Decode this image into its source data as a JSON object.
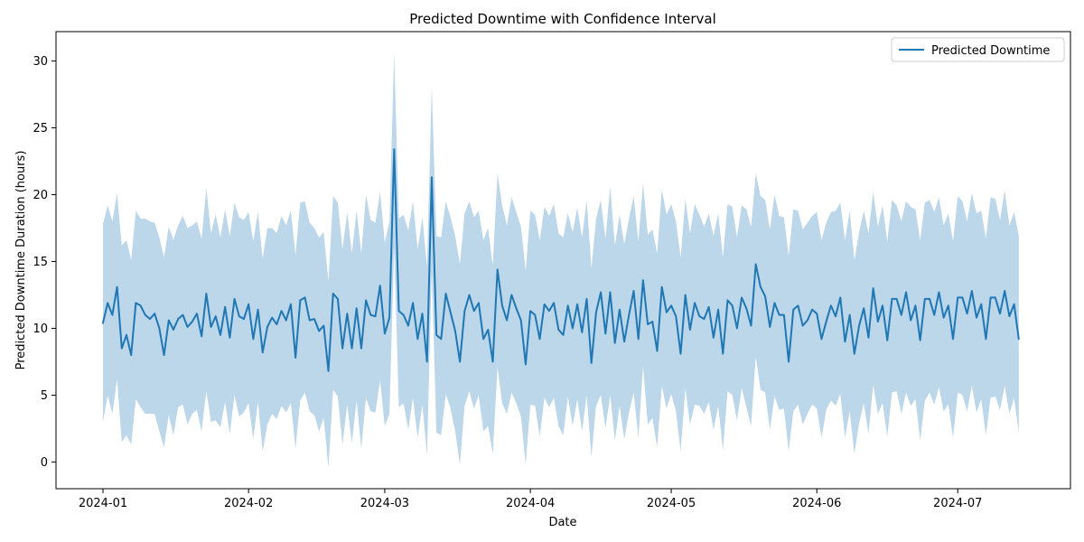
{
  "chart_data": {
    "type": "line",
    "title": "Predicted Downtime with Confidence Interval",
    "xlabel": "Date",
    "ylabel": "Predicted Downtime Duration (hours)",
    "xlim": [
      "2023-12-22",
      "2024-07-25"
    ],
    "ylim": [
      -2,
      32.2
    ],
    "x_ticks": [
      {
        "date": "2024-01-01",
        "label": "2024-01"
      },
      {
        "date": "2024-02-01",
        "label": "2024-02"
      },
      {
        "date": "2024-03-01",
        "label": "2024-03"
      },
      {
        "date": "2024-04-01",
        "label": "2024-04"
      },
      {
        "date": "2024-05-01",
        "label": "2024-05"
      },
      {
        "date": "2024-06-01",
        "label": "2024-06"
      },
      {
        "date": "2024-07-01",
        "label": "2024-07"
      }
    ],
    "y_ticks": [
      0,
      5,
      10,
      15,
      20,
      25,
      30
    ],
    "grid": false,
    "legend": {
      "position": "top-right",
      "entries": [
        "Predicted Downtime"
      ]
    },
    "colors": {
      "line": "#1f77b4",
      "band": "#bcd6ea"
    },
    "x": [
      "2024-01-01",
      "2024-01-02",
      "2024-01-03",
      "2024-01-04",
      "2024-01-05",
      "2024-01-06",
      "2024-01-07",
      "2024-01-08",
      "2024-01-09",
      "2024-01-10",
      "2024-01-11",
      "2024-01-12",
      "2024-01-13",
      "2024-01-14",
      "2024-01-15",
      "2024-01-16",
      "2024-01-17",
      "2024-01-18",
      "2024-01-19",
      "2024-01-20",
      "2024-01-21",
      "2024-01-22",
      "2024-01-23",
      "2024-01-24",
      "2024-01-25",
      "2024-01-26",
      "2024-01-27",
      "2024-01-28",
      "2024-01-29",
      "2024-01-30",
      "2024-01-31",
      "2024-02-01",
      "2024-02-02",
      "2024-02-03",
      "2024-02-04",
      "2024-02-05",
      "2024-02-06",
      "2024-02-07",
      "2024-02-08",
      "2024-02-09",
      "2024-02-10",
      "2024-02-11",
      "2024-02-12",
      "2024-02-13",
      "2024-02-14",
      "2024-02-15",
      "2024-02-16",
      "2024-02-17",
      "2024-02-18",
      "2024-02-19",
      "2024-02-20",
      "2024-02-21",
      "2024-02-22",
      "2024-02-23",
      "2024-02-24",
      "2024-02-25",
      "2024-02-26",
      "2024-02-27",
      "2024-02-28",
      "2024-02-29",
      "2024-03-01",
      "2024-03-02",
      "2024-03-03",
      "2024-03-04",
      "2024-03-05",
      "2024-03-06",
      "2024-03-07",
      "2024-03-08",
      "2024-03-09",
      "2024-03-10",
      "2024-03-11",
      "2024-03-12",
      "2024-03-13",
      "2024-03-14",
      "2024-03-15",
      "2024-03-16",
      "2024-03-17",
      "2024-03-18",
      "2024-03-19",
      "2024-03-20",
      "2024-03-21",
      "2024-03-22",
      "2024-03-23",
      "2024-03-24",
      "2024-03-25",
      "2024-03-26",
      "2024-03-27",
      "2024-03-28",
      "2024-03-29",
      "2024-03-30",
      "2024-03-31",
      "2024-04-01",
      "2024-04-02",
      "2024-04-03",
      "2024-04-04",
      "2024-04-05",
      "2024-04-06",
      "2024-04-07",
      "2024-04-08",
      "2024-04-09",
      "2024-04-10",
      "2024-04-11",
      "2024-04-12",
      "2024-04-13",
      "2024-04-14",
      "2024-04-15",
      "2024-04-16",
      "2024-04-17",
      "2024-04-18",
      "2024-04-19",
      "2024-04-20",
      "2024-04-21",
      "2024-04-22",
      "2024-04-23",
      "2024-04-24",
      "2024-04-25",
      "2024-04-26",
      "2024-04-27",
      "2024-04-28",
      "2024-04-29",
      "2024-04-30",
      "2024-05-01",
      "2024-05-02",
      "2024-05-03",
      "2024-05-04",
      "2024-05-05",
      "2024-05-06",
      "2024-05-07",
      "2024-05-08",
      "2024-05-09",
      "2024-05-10",
      "2024-05-11",
      "2024-05-12",
      "2024-05-13",
      "2024-05-14",
      "2024-05-15",
      "2024-05-16",
      "2024-05-17",
      "2024-05-18",
      "2024-05-19",
      "2024-05-20",
      "2024-05-21",
      "2024-05-22",
      "2024-05-23",
      "2024-05-24",
      "2024-05-25",
      "2024-05-26",
      "2024-05-27",
      "2024-05-28",
      "2024-05-29",
      "2024-05-30",
      "2024-05-31",
      "2024-06-01",
      "2024-06-02",
      "2024-06-03",
      "2024-06-04",
      "2024-06-05",
      "2024-06-06",
      "2024-06-07",
      "2024-06-08",
      "2024-06-09",
      "2024-06-10",
      "2024-06-11",
      "2024-06-12",
      "2024-06-13",
      "2024-06-14",
      "2024-06-15",
      "2024-06-16",
      "2024-06-17",
      "2024-06-18",
      "2024-06-19",
      "2024-06-20",
      "2024-06-21",
      "2024-06-22",
      "2024-06-23",
      "2024-06-24",
      "2024-06-25",
      "2024-06-26",
      "2024-06-27",
      "2024-06-28",
      "2024-06-29",
      "2024-06-30",
      "2024-07-01",
      "2024-07-02",
      "2024-07-03",
      "2024-07-04",
      "2024-07-05",
      "2024-07-06",
      "2024-07-07",
      "2024-07-08",
      "2024-07-09",
      "2024-07-10",
      "2024-07-11",
      "2024-07-12",
      "2024-07-13",
      "2024-07-14"
    ],
    "series": [
      {
        "name": "Predicted Downtime",
        "values": [
          10.4,
          11.9,
          11.0,
          13.1,
          8.5,
          9.5,
          8.0,
          11.9,
          11.7,
          11.0,
          10.7,
          11.1,
          10.0,
          8.0,
          10.6,
          9.9,
          10.7,
          11.0,
          10.1,
          10.5,
          11.1,
          9.4,
          12.6,
          10.1,
          10.9,
          9.5,
          11.6,
          9.3,
          12.2,
          10.9,
          10.7,
          11.8,
          9.2,
          11.4,
          8.2,
          10.1,
          10.8,
          10.3,
          11.3,
          10.6,
          11.8,
          7.8,
          12.1,
          12.3,
          10.6,
          10.7,
          9.8,
          10.2,
          6.8,
          12.6,
          12.2,
          8.5,
          11.1,
          8.5,
          11.5,
          8.5,
          12.1,
          11.0,
          10.9,
          13.2,
          9.6,
          10.8,
          23.4,
          11.3,
          11.0,
          10.2,
          11.9,
          9.2,
          11.1,
          7.5,
          21.3,
          9.5,
          9.2,
          12.6,
          11.2,
          9.8,
          7.5,
          11.3,
          12.5,
          11.3,
          11.9,
          9.2,
          9.9,
          7.5,
          14.4,
          11.7,
          10.6,
          12.5,
          11.5,
          10.6,
          7.3,
          11.3,
          11.0,
          9.2,
          11.8,
          11.3,
          11.9,
          9.9,
          9.5,
          11.7,
          10.0,
          11.8,
          9.7,
          12.2,
          7.4,
          11.2,
          12.7,
          9.6,
          12.7,
          8.9,
          11.4,
          9.0,
          11.0,
          12.8,
          9.2,
          13.6,
          10.3,
          10.5,
          8.3,
          13.1,
          11.2,
          11.7,
          10.9,
          8.1,
          12.5,
          9.9,
          11.9,
          10.9,
          10.7,
          11.6,
          9.3,
          11.4,
          8.1,
          12.1,
          11.7,
          10.0,
          12.3,
          11.5,
          10.2,
          14.8,
          13.1,
          12.4,
          10.1,
          11.9,
          11.0,
          11.0,
          7.5,
          11.4,
          11.7,
          10.2,
          10.6,
          11.4,
          11.1,
          9.2,
          10.5,
          11.7,
          10.9,
          12.3,
          9.0,
          11.0,
          8.1,
          10.2,
          11.5,
          9.3,
          13.0,
          10.5,
          11.7,
          9.1,
          12.2,
          12.2,
          11.0,
          12.7,
          10.6,
          11.7,
          9.1,
          12.2,
          12.2,
          11.0,
          12.7,
          10.8,
          11.7,
          9.2,
          12.3,
          12.3,
          11.1,
          12.8,
          10.8,
          11.8,
          9.2,
          12.3,
          12.3,
          11.1,
          12.8,
          10.9,
          11.8,
          9.2
        ]
      }
    ],
    "ci_upper": [
      17.8,
      19.2,
      18.0,
      20.1,
      16.2,
      16.6,
      15.1,
      18.8,
      18.2,
      18.2,
      18.0,
      17.9,
      16.8,
      15.3,
      17.6,
      16.6,
      17.7,
      18.4,
      17.5,
      17.7,
      18.0,
      16.7,
      20.5,
      17.1,
      18.5,
      16.8,
      18.9,
      16.9,
      19.4,
      18.3,
      18.1,
      18.7,
      16.5,
      18.7,
      15.2,
      17.5,
      17.5,
      17.1,
      18.4,
      17.7,
      18.8,
      15.5,
      19.4,
      19.5,
      17.9,
      17.5,
      16.8,
      17.2,
      13.5,
      19.9,
      19.4,
      15.9,
      18.7,
      15.6,
      18.8,
      15.6,
      20.0,
      18.1,
      17.9,
      20.2,
      16.4,
      18.0,
      30.6,
      18.2,
      18.5,
      17.3,
      19.5,
      15.9,
      18.3,
      14.6,
      28.1,
      16.9,
      16.8,
      19.5,
      18.3,
      16.9,
      14.8,
      18.6,
      19.5,
      18.3,
      18.8,
      16.6,
      17.5,
      14.7,
      21.6,
      19.2,
      17.7,
      19.8,
      18.7,
      17.6,
      14.3,
      18.8,
      18.5,
      16.6,
      19.1,
      18.4,
      19.3,
      17.1,
      16.8,
      18.6,
      17.2,
      19.0,
      16.8,
      19.6,
      14.5,
      18.2,
      19.6,
      16.7,
      20.6,
      16.2,
      18.5,
      16.3,
      18.2,
      19.9,
      16.5,
      20.9,
      17.0,
      17.4,
      15.6,
      20.4,
      18.5,
      19.3,
      18.0,
      15.3,
      19.7,
      17.1,
      19.3,
      18.5,
      17.6,
      18.6,
      16.9,
      18.6,
      15.3,
      19.3,
      19.1,
      16.8,
      19.2,
      18.9,
      17.6,
      21.6,
      19.9,
      19.6,
      17.4,
      20.0,
      18.4,
      18.3,
      15.4,
      18.9,
      18.8,
      17.4,
      17.9,
      18.4,
      18.7,
      16.6,
      17.9,
      18.7,
      18.8,
      19.4,
      16.6,
      18.8,
      15.1,
      17.2,
      18.8,
      17.1,
      20.2,
      17.6,
      19.2,
      16.5,
      19.6,
      19.2,
      18.0,
      19.5,
      19.1,
      18.9,
      16.6,
      19.4,
      19.6,
      18.7,
      19.8,
      17.7,
      18.6,
      16.5,
      19.9,
      19.5,
      18.0,
      20.1,
      18.6,
      18.8,
      16.7,
      19.8,
      19.7,
      18.1,
      20.3,
      17.7,
      18.7,
      16.9
    ],
    "ci_lower": [
      3.0,
      5.0,
      3.6,
      6.2,
      1.5,
      2.0,
      1.3,
      4.7,
      4.1,
      3.6,
      3.6,
      3.6,
      2.3,
      1.1,
      3.5,
      2.0,
      4.1,
      4.3,
      2.8,
      3.6,
      3.9,
      2.3,
      5.3,
      3.0,
      3.1,
      2.6,
      4.5,
      2.1,
      5.0,
      3.4,
      3.7,
      4.4,
      1.7,
      4.5,
      0.8,
      2.8,
      3.6,
      3.2,
      4.2,
      3.7,
      4.4,
      1.0,
      4.6,
      5.2,
      3.8,
      3.5,
      2.3,
      3.3,
      -0.4,
      5.4,
      4.9,
      1.3,
      4.3,
      1.4,
      4.6,
      1.0,
      4.8,
      3.8,
      3.7,
      6.1,
      2.7,
      3.6,
      16.1,
      4.1,
      4.4,
      2.4,
      4.8,
      1.8,
      4.3,
      0.5,
      14.3,
      2.2,
      2.0,
      5.1,
      4.0,
      2.3,
      -0.2,
      4.2,
      5.3,
      4.0,
      5.0,
      2.3,
      2.7,
      0.6,
      7.1,
      4.4,
      3.6,
      5.2,
      4.4,
      3.4,
      -0.2,
      4.3,
      4.2,
      1.9,
      4.8,
      4.1,
      4.8,
      2.7,
      2.0,
      4.9,
      2.7,
      4.7,
      2.3,
      5.0,
      0.4,
      4.2,
      5.0,
      2.5,
      5.0,
      1.6,
      4.2,
      1.7,
      3.7,
      5.2,
      1.8,
      7.2,
      2.8,
      3.3,
      1.1,
      5.7,
      4.0,
      5.1,
      3.8,
      0.8,
      5.5,
      2.8,
      4.3,
      4.2,
      3.6,
      4.5,
      2.4,
      4.2,
      0.9,
      5.3,
      5.0,
      3.1,
      5.5,
      4.1,
      2.7,
      7.9,
      5.4,
      5.2,
      2.4,
      4.9,
      3.9,
      4.0,
      0.8,
      3.8,
      4.3,
      2.8,
      3.6,
      4.3,
      4.0,
      1.8,
      3.9,
      4.6,
      4.2,
      5.1,
      1.8,
      3.8,
      0.6,
      2.9,
      4.4,
      2.1,
      5.8,
      3.6,
      4.4,
      1.9,
      5.2,
      5.3,
      3.6,
      5.2,
      4.2,
      4.7,
      1.6,
      4.6,
      5.2,
      4.3,
      5.6,
      3.8,
      4.3,
      1.8,
      5.2,
      5.0,
      3.8,
      5.7,
      3.7,
      4.7,
      2.0,
      4.8,
      4.9,
      3.9,
      5.7,
      3.6,
      4.8,
      2.2
    ]
  }
}
